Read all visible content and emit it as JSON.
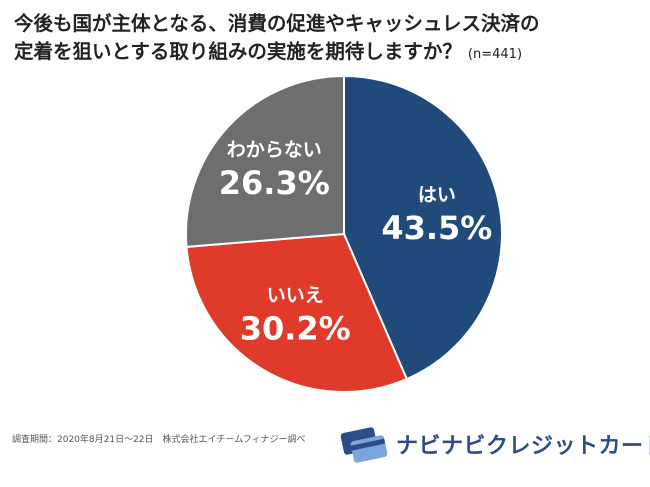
{
  "title": {
    "line1": "今後も国が主体となる、消費の促進やキャッシュレス決済の",
    "line2": "定着を狙いとする取り組みの実施を期待しますか？",
    "sample": "(n=441)"
  },
  "chart_data": {
    "type": "pie",
    "title": "今後も国が主体となる、消費の促進やキャッシュレス決済の定着を狙いとする取り組みの実施を期待しますか？",
    "slices": [
      {
        "label": "はい",
        "value": 43.5,
        "display": "43.5%",
        "color": "#1f4a7a"
      },
      {
        "label": "いいえ",
        "value": 30.2,
        "display": "30.2%",
        "color": "#e03a2b"
      },
      {
        "label": "わからない",
        "value": 26.3,
        "display": "26.3%",
        "color": "#6e6e6e"
      }
    ],
    "start": "12 o'clock",
    "direction": "clockwise"
  },
  "footer": {
    "note": "調査期間：2020年8月21日〜22日　株式会社エイチームフィナジー調べ"
  },
  "logo": {
    "text": "ナビナビクレジットカード",
    "icon": "credit-card-icon",
    "color": "#2e4c86"
  }
}
